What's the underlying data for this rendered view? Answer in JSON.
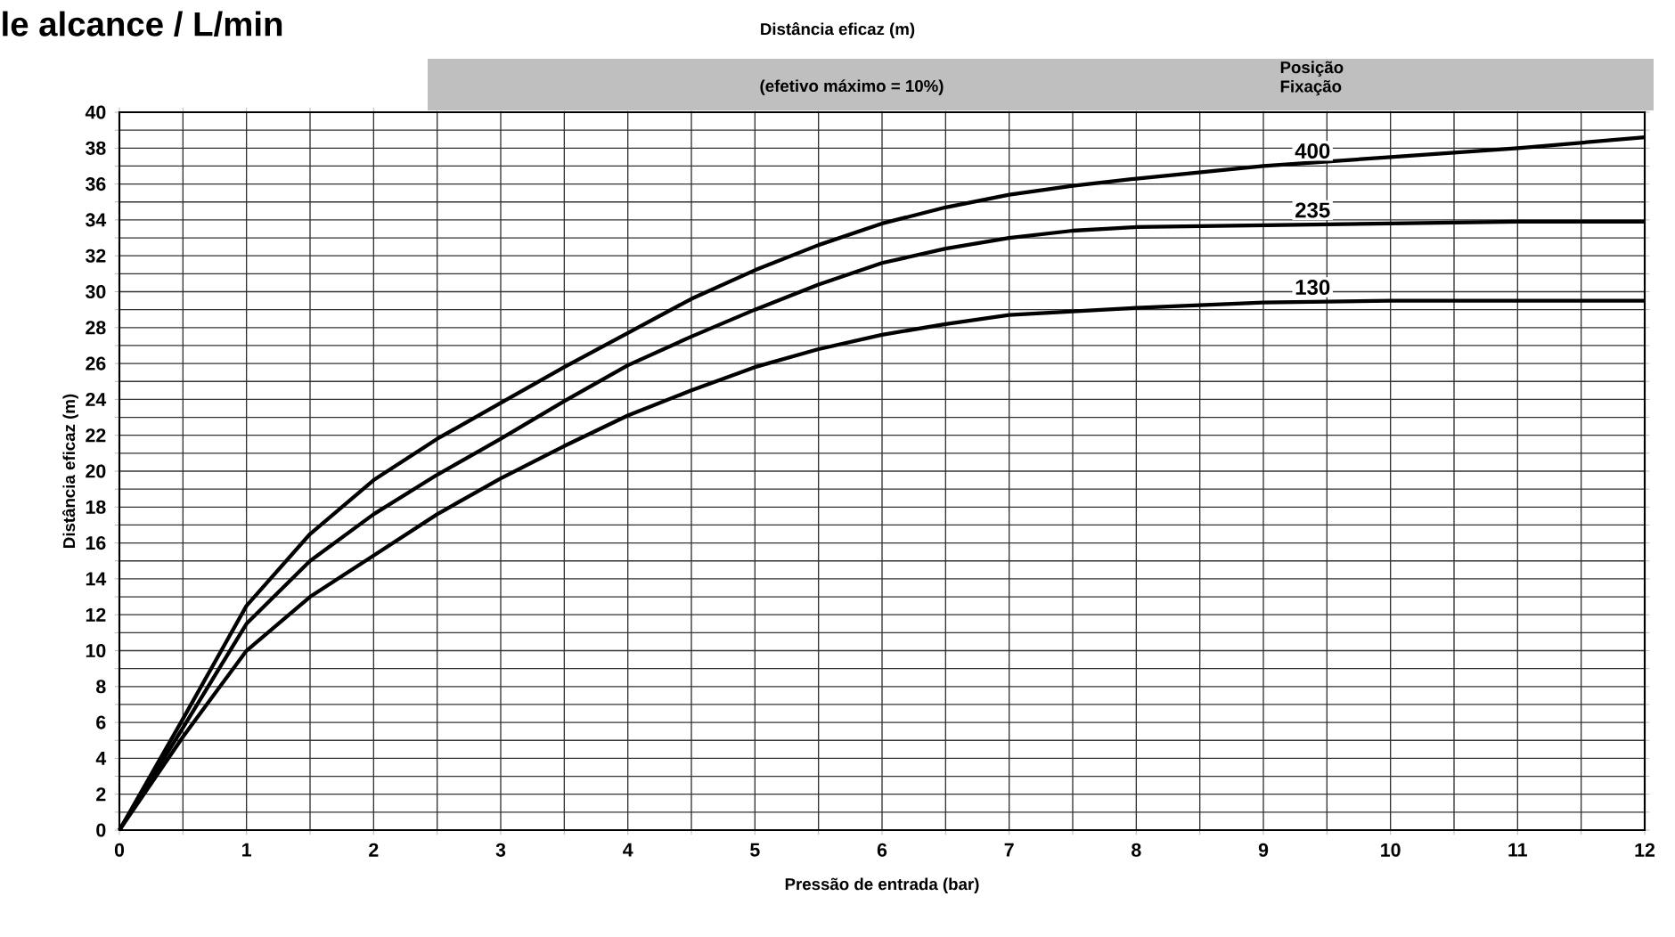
{
  "chart_data": {
    "type": "line",
    "title": "Distância eficaz (m)",
    "subtitle": "(efetivo máximo = 10%)",
    "xlabel": "Pressão de entrada (bar)",
    "ylabel": "Distância eficaz (m)",
    "legend_title": "Posição Fixação",
    "annotations": [
      "le alcance / L/min"
    ],
    "x": [
      0,
      0.5,
      1,
      1.5,
      2,
      2.5,
      3,
      3.5,
      4,
      4.5,
      5,
      5.5,
      6,
      6.5,
      7,
      7.5,
      8,
      9,
      10,
      11,
      12
    ],
    "series": [
      {
        "name": "400",
        "color": "#000000",
        "values": [
          0,
          6.2,
          12.5,
          16.5,
          19.5,
          21.8,
          23.8,
          25.8,
          27.7,
          29.6,
          31.2,
          32.6,
          33.8,
          34.7,
          35.4,
          35.9,
          36.3,
          37,
          37.5,
          38,
          38.6
        ]
      },
      {
        "name": "235",
        "color": "#000000",
        "values": [
          0,
          5.7,
          11.5,
          15,
          17.6,
          19.8,
          21.8,
          23.9,
          25.9,
          27.5,
          29,
          30.4,
          31.6,
          32.4,
          33,
          33.4,
          33.6,
          33.7,
          33.8,
          33.9,
          33.9
        ]
      },
      {
        "name": "130",
        "color": "#000000",
        "values": [
          0,
          5.2,
          10,
          13,
          15.3,
          17.6,
          19.6,
          21.4,
          23.1,
          24.5,
          25.8,
          26.8,
          27.6,
          28.2,
          28.7,
          28.9,
          29.1,
          29.4,
          29.5,
          29.5,
          29.5
        ]
      }
    ],
    "xlim": [
      0,
      12
    ],
    "ylim": [
      0,
      40
    ],
    "xticks": [
      0,
      {
        "value": 0.5,
        "label": null
      },
      1,
      {
        "value": 1.5,
        "label": null
      },
      2,
      {
        "value": 2.5,
        "label": null
      },
      3,
      {
        "value": 3.5,
        "label": null
      },
      4,
      {
        "value": 4.5,
        "label": null
      },
      5,
      {
        "value": 5.5,
        "label": null
      },
      6,
      {
        "value": 6.5,
        "label": null
      },
      7,
      {
        "value": 7.5,
        "label": null
      },
      8,
      {
        "value": 8.5,
        "label": null
      },
      9,
      {
        "value": 9.5,
        "label": null
      },
      10,
      {
        "value": 10.5,
        "label": null
      },
      11,
      {
        "value": 11.5,
        "label": null
      },
      12
    ],
    "yticks": [
      0,
      {
        "value": 1,
        "label": null
      },
      2,
      {
        "value": 3,
        "label": null
      },
      4,
      {
        "value": 5,
        "label": null
      },
      6,
      {
        "value": 7,
        "label": null
      },
      8,
      {
        "value": 9,
        "label": null
      },
      10,
      {
        "value": 11,
        "label": null
      },
      12,
      {
        "value": 13,
        "label": null
      },
      14,
      {
        "value": 15,
        "label": null
      },
      16,
      {
        "value": 17,
        "label": null
      },
      18,
      {
        "value": 19,
        "label": null
      },
      20,
      {
        "value": 21,
        "label": null
      },
      22,
      {
        "value": 23,
        "label": null
      },
      24,
      {
        "value": 25,
        "label": null
      },
      26,
      {
        "value": 27,
        "label": null
      },
      28,
      {
        "value": 29,
        "label": null
      },
      30,
      {
        "value": 31,
        "label": null
      },
      32,
      {
        "value": 33,
        "label": null
      },
      34,
      {
        "value": 35,
        "label": null
      },
      36,
      {
        "value": 37,
        "label": null
      },
      38,
      {
        "value": 39,
        "label": null
      },
      40
    ],
    "grid": true,
    "marker": "none",
    "line_style": "solid"
  }
}
